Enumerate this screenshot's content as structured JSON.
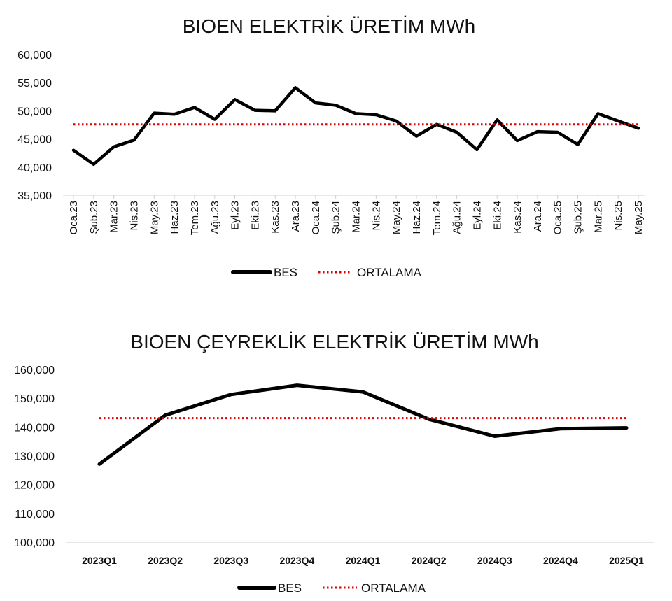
{
  "chart_data": [
    {
      "type": "line",
      "title": "BIOEN ELEKTRİK ÜRETİM MWh",
      "categories": [
        "Oca.23",
        "Şub.23",
        "Mar.23",
        "Nis.23",
        "May.23",
        "Haz.23",
        "Tem.23",
        "Ağu.23",
        "Eyl.23",
        "Eki.23",
        "Kas.23",
        "Ara.23",
        "Oca.24",
        "Şub.24",
        "Mar.24",
        "Nis.24",
        "May.24",
        "Haz.24",
        "Tem.24",
        "Ağu.24",
        "Eyl.24",
        "Eki.24",
        "Kas.24",
        "Ara.24",
        "Oca.25",
        "Şub.25",
        "Mar.25",
        "Nis.25",
        "May.25"
      ],
      "series": [
        {
          "name": "BES",
          "values": [
            43000,
            40500,
            43600,
            44800,
            49600,
            49400,
            50600,
            48500,
            52000,
            50100,
            50000,
            54100,
            51400,
            51000,
            49500,
            49300,
            48200,
            45500,
            47600,
            46200,
            43100,
            48400,
            44700,
            46300,
            46200,
            44000,
            49500,
            48200,
            46900
          ],
          "color": "#000000",
          "style": "solid"
        },
        {
          "name": "ORTALAMA",
          "values": [
            47600,
            47600,
            47600,
            47600,
            47600,
            47600,
            47600,
            47600,
            47600,
            47600,
            47600,
            47600,
            47600,
            47600,
            47600,
            47600,
            47600,
            47600,
            47600,
            47600,
            47600,
            47600,
            47600,
            47600,
            47600,
            47600,
            47600,
            47600,
            47600
          ],
          "color": "#e00000",
          "style": "dotted"
        }
      ],
      "ylim": [
        35000,
        60000
      ],
      "yticks": [
        35000,
        40000,
        45000,
        50000,
        55000,
        60000
      ],
      "ytick_labels": [
        "35,000",
        "40,000",
        "45,000",
        "50,000",
        "55,000",
        "60,000"
      ],
      "legend_position": "bottom",
      "grid": false
    },
    {
      "type": "line",
      "title": "BIOEN ÇEYREKLİK ELEKTRİK ÜRETİM MWh",
      "categories": [
        "2023Q1",
        "2023Q2",
        "2023Q3",
        "2023Q4",
        "2024Q1",
        "2024Q2",
        "2024Q3",
        "2024Q4",
        "2025Q1"
      ],
      "series": [
        {
          "name": "BES",
          "values": [
            127100,
            144100,
            151300,
            154500,
            152200,
            142700,
            136800,
            139400,
            139700
          ],
          "color": "#000000",
          "style": "solid"
        },
        {
          "name": "ORTALAMA",
          "values": [
            143100,
            143100,
            143100,
            143100,
            143100,
            143100,
            143100,
            143100,
            143100
          ],
          "color": "#e00000",
          "style": "dotted"
        }
      ],
      "ylim": [
        100000,
        160000
      ],
      "yticks": [
        100000,
        110000,
        120000,
        130000,
        140000,
        150000,
        160000
      ],
      "ytick_labels": [
        "100,000",
        "110,000",
        "120,000",
        "130,000",
        "140,000",
        "150,000",
        "160,000"
      ],
      "legend_position": "bottom",
      "grid": false
    }
  ]
}
